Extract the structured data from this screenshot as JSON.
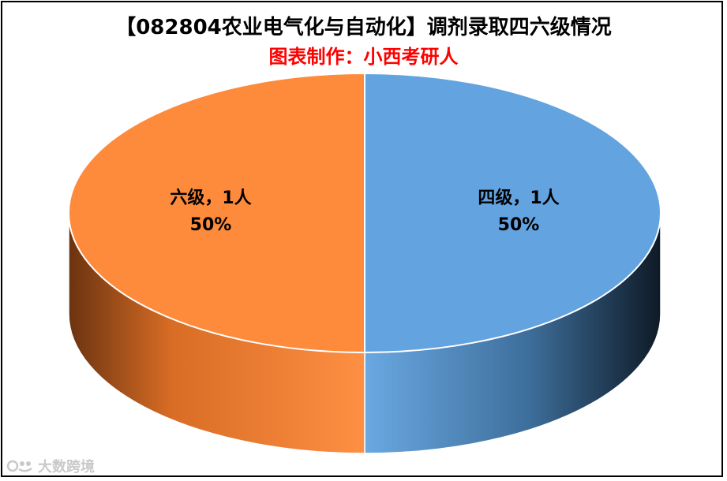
{
  "chart_data": {
    "type": "pie",
    "title": "【082804农业电气化与自动化】调剂录取四六级情况",
    "subtitle": "图表制作：小西考研人",
    "slices": [
      {
        "name": "四级",
        "value": 1,
        "percent": "50%",
        "label": "四级，1人",
        "color": "#62a3e0"
      },
      {
        "name": "六级",
        "value": 1,
        "percent": "50%",
        "label": "六级，1人",
        "color": "#fe8a3c"
      }
    ],
    "unit": "人",
    "legend": "none"
  },
  "watermark": {
    "text": "大数跨境",
    "icon": "brand-logo-icon"
  }
}
